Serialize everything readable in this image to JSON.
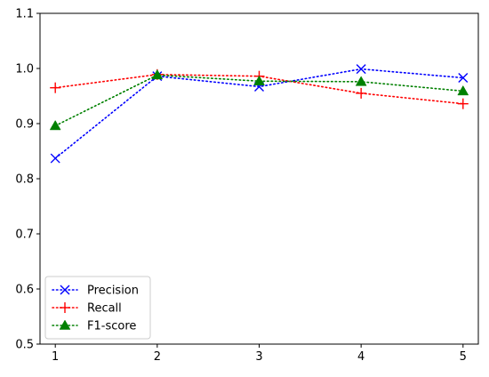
{
  "chart_data": {
    "type": "line",
    "title": "",
    "xlabel": "",
    "ylabel": "",
    "x": [
      1,
      2,
      3,
      4,
      5
    ],
    "xlim": [
      0.85,
      5.15
    ],
    "ylim": [
      0.5,
      1.1
    ],
    "xticks": [
      "1",
      "2",
      "3",
      "4",
      "5"
    ],
    "yticks": [
      "0.5",
      "0.6",
      "0.7",
      "0.8",
      "0.9",
      "1.0",
      "1.1"
    ],
    "grid": false,
    "legend_position": "lower-left",
    "series": [
      {
        "name": "Precision",
        "values": [
          0.837,
          0.986,
          0.967,
          0.999,
          0.983
        ],
        "color": "#0000ff",
        "marker": "x",
        "linestyle": "dotted"
      },
      {
        "name": "Recall",
        "values": [
          0.965,
          0.989,
          0.986,
          0.955,
          0.936
        ],
        "color": "#ff0000",
        "marker": "+",
        "linestyle": "dotted"
      },
      {
        "name": "F1-score",
        "values": [
          0.896,
          0.988,
          0.977,
          0.976,
          0.959
        ],
        "color": "#008000",
        "marker": "triangle",
        "linestyle": "dotted"
      }
    ]
  }
}
